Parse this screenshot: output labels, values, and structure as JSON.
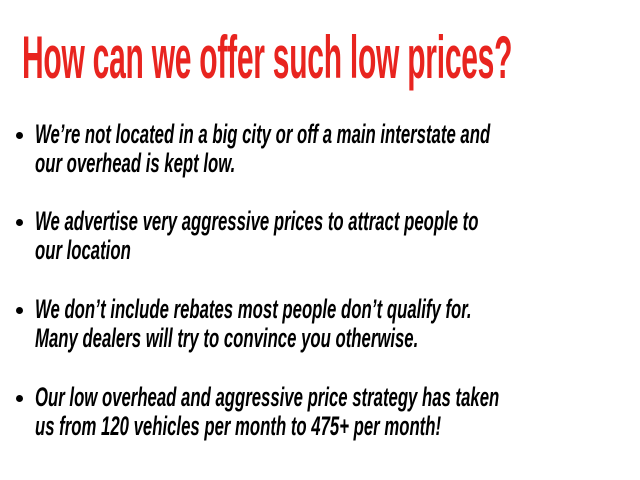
{
  "title": "How can we offer such low prices?",
  "colors": {
    "title": "#e8241f",
    "text": "#000000"
  },
  "bullets": [
    {
      "lines": [
        "We’re not located in a big city or off a main interstate and",
        "our overhead is kept low."
      ]
    },
    {
      "lines": [
        "We advertise very aggressive prices to attract people to",
        "our location"
      ]
    },
    {
      "lines": [
        "We don’t include rebates most people don’t qualify for.",
        "Many dealers will try to convince you otherwise."
      ]
    },
    {
      "lines": [
        "Our low overhead and aggressive price strategy has taken",
        "us from 120 vehicles per month to 475+ per month!"
      ]
    }
  ]
}
